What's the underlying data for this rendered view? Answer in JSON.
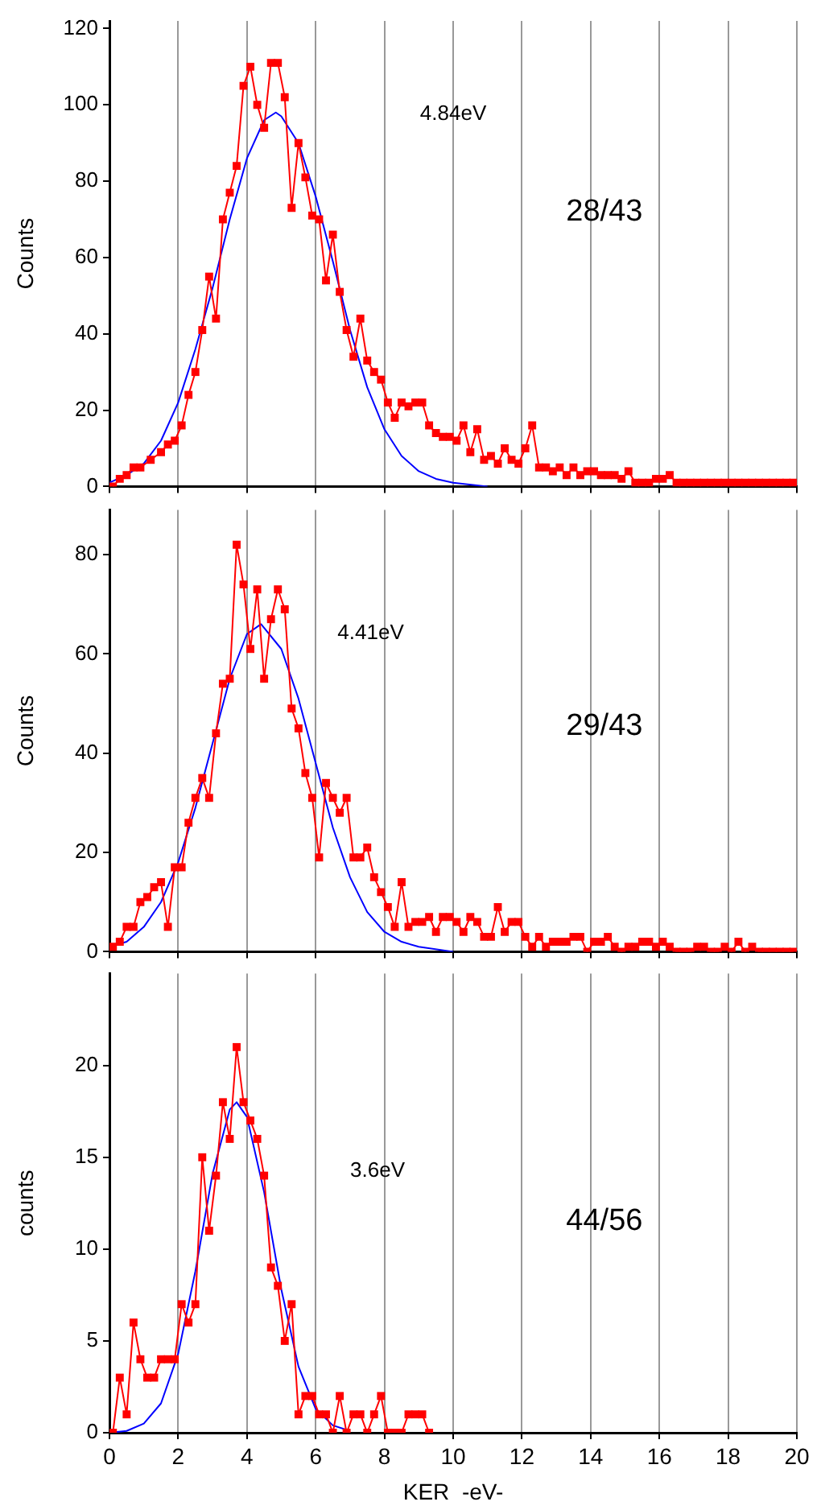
{
  "chart_data": [
    {
      "type": "line",
      "ylabel": "Counts",
      "xlim": [
        0,
        20
      ],
      "ylim": [
        0,
        122
      ],
      "xticks": [
        0,
        2,
        4,
        6,
        8,
        10,
        12,
        14,
        16,
        18,
        20
      ],
      "yticks": [
        0,
        20,
        40,
        60,
        80,
        100,
        120
      ],
      "grid": "x",
      "legend": false,
      "tick_labels": "y",
      "annotations": [
        "4.84eV",
        "28/43"
      ],
      "series": [
        {
          "color": "#ff0000",
          "marker": "square",
          "x": [
            0.1,
            0.3,
            0.5,
            0.7,
            0.9,
            1.2,
            1.5,
            1.7,
            1.9,
            2.1,
            2.3,
            2.5,
            2.7,
            2.9,
            3.1,
            3.3,
            3.5,
            3.7,
            3.9,
            4.1,
            4.3,
            4.5,
            4.7,
            4.9,
            5.1,
            5.3,
            5.5,
            5.7,
            5.9,
            6.1,
            6.3,
            6.5,
            6.7,
            6.9,
            7.1,
            7.3,
            7.5,
            7.7,
            7.9,
            8.1,
            8.3,
            8.5,
            8.7,
            8.9,
            9.1,
            9.3,
            9.5,
            9.7,
            9.9,
            10.1,
            10.3,
            10.5,
            10.7,
            10.9,
            11.1,
            11.3,
            11.5,
            11.7,
            11.9,
            12.1,
            12.3,
            12.5,
            12.7,
            12.9,
            13.1,
            13.3,
            13.5,
            13.7,
            13.9,
            14.1,
            14.3,
            14.5,
            14.7,
            14.9,
            15.1,
            15.3,
            15.5,
            15.7,
            15.9,
            16.1,
            16.3,
            16.5,
            16.7,
            16.9,
            17.1,
            17.3,
            17.5,
            17.7,
            17.9,
            18.1,
            18.3,
            18.5,
            18.7,
            18.9,
            19.1,
            19.3,
            19.5,
            19.7,
            19.9
          ],
          "values": [
            0,
            2,
            3,
            5,
            5,
            7,
            9,
            11,
            12,
            16,
            24,
            30,
            41,
            55,
            44,
            70,
            77,
            84,
            105,
            110,
            100,
            94,
            111,
            111,
            102,
            73,
            90,
            81,
            71,
            70,
            54,
            66,
            51,
            41,
            34,
            44,
            33,
            30,
            28,
            22,
            18,
            22,
            21,
            22,
            22,
            16,
            14,
            13,
            13,
            12,
            16,
            9,
            15,
            7,
            8,
            6,
            10,
            7,
            6,
            10,
            16,
            5,
            5,
            4,
            5,
            3,
            5,
            3,
            4,
            4,
            3,
            3,
            3,
            2,
            4,
            1,
            1,
            1,
            2,
            2,
            3,
            1,
            1,
            1,
            1,
            1,
            1,
            1,
            1,
            1,
            1,
            1,
            1,
            1,
            1,
            1,
            1,
            1,
            1
          ]
        },
        {
          "color": "#0000ff",
          "marker": "none",
          "x": [
            0,
            0.5,
            1,
            1.5,
            2,
            2.5,
            3,
            3.5,
            4,
            4.5,
            4.84,
            5,
            5.5,
            6,
            6.5,
            7,
            7.5,
            8,
            8.5,
            9,
            9.5,
            10,
            11
          ],
          "values": [
            1,
            3,
            6,
            12,
            22,
            36,
            52,
            70,
            86,
            96,
            98,
            97,
            90,
            76,
            59,
            41,
            26,
            15,
            8,
            4,
            2,
            1,
            0
          ]
        }
      ]
    },
    {
      "type": "line",
      "ylabel": "Counts",
      "xlim": [
        0,
        20
      ],
      "ylim": [
        0,
        89
      ],
      "xticks": [
        0,
        2,
        4,
        6,
        8,
        10,
        12,
        14,
        16,
        18,
        20
      ],
      "yticks": [
        0,
        20,
        40,
        60,
        80
      ],
      "grid": "x",
      "legend": false,
      "tick_labels": "y",
      "annotations": [
        "4.41eV",
        "29/43"
      ],
      "series": [
        {
          "color": "#ff0000",
          "marker": "square",
          "x": [
            0.1,
            0.3,
            0.5,
            0.7,
            0.9,
            1.1,
            1.3,
            1.5,
            1.7,
            1.9,
            2.1,
            2.3,
            2.5,
            2.7,
            2.9,
            3.1,
            3.3,
            3.5,
            3.7,
            3.9,
            4.1,
            4.3,
            4.5,
            4.7,
            4.9,
            5.1,
            5.3,
            5.5,
            5.7,
            5.9,
            6.1,
            6.3,
            6.5,
            6.7,
            6.9,
            7.1,
            7.3,
            7.5,
            7.7,
            7.9,
            8.1,
            8.3,
            8.5,
            8.7,
            8.9,
            9.1,
            9.3,
            9.5,
            9.7,
            9.9,
            10.1,
            10.3,
            10.5,
            10.7,
            10.9,
            11.1,
            11.3,
            11.5,
            11.7,
            11.9,
            12.1,
            12.3,
            12.5,
            12.7,
            12.9,
            13.1,
            13.3,
            13.5,
            13.7,
            13.9,
            14.1,
            14.3,
            14.5,
            14.7,
            14.9,
            15.1,
            15.3,
            15.5,
            15.7,
            15.9,
            16.1,
            16.3,
            16.5,
            16.7,
            16.9,
            17.1,
            17.3,
            17.5,
            17.7,
            17.9,
            18.1,
            18.3,
            18.5,
            18.7,
            18.9,
            19.1,
            19.3,
            19.5,
            19.7,
            19.9
          ],
          "values": [
            1,
            2,
            5,
            5,
            10,
            11,
            13,
            14,
            5,
            17,
            17,
            26,
            31,
            35,
            31,
            44,
            54,
            55,
            82,
            74,
            61,
            73,
            55,
            67,
            73,
            69,
            49,
            45,
            36,
            31,
            19,
            34,
            31,
            28,
            31,
            19,
            19,
            21,
            15,
            12,
            9,
            5,
            14,
            5,
            6,
            6,
            7,
            4,
            7,
            7,
            6,
            4,
            7,
            6,
            3,
            3,
            9,
            4,
            6,
            6,
            3,
            1,
            3,
            1,
            2,
            2,
            2,
            3,
            3,
            0,
            2,
            2,
            3,
            1,
            0,
            1,
            1,
            2,
            2,
            1,
            2,
            1,
            0,
            0,
            0,
            1,
            1,
            0,
            0,
            1,
            0,
            2,
            0,
            1,
            0,
            0,
            0,
            0,
            0,
            0
          ]
        },
        {
          "color": "#0000ff",
          "marker": "none",
          "x": [
            0,
            0.5,
            1,
            1.5,
            2,
            2.5,
            3,
            3.5,
            4,
            4.41,
            5,
            5.5,
            6,
            6.5,
            7,
            7.5,
            8,
            8.5,
            9,
            10
          ],
          "values": [
            1,
            2,
            5,
            10,
            18,
            29,
            42,
            55,
            64,
            66,
            61,
            51,
            38,
            25,
            15,
            8,
            4,
            2,
            1,
            0
          ]
        }
      ]
    },
    {
      "type": "line",
      "ylabel": "counts",
      "xlabel": "KER  -eV-",
      "xlim": [
        0,
        20
      ],
      "ylim": [
        0,
        25
      ],
      "xticks": [
        0,
        2,
        4,
        6,
        8,
        10,
        12,
        14,
        16,
        18,
        20
      ],
      "yticks": [
        0,
        5,
        10,
        15,
        20
      ],
      "grid": "x",
      "legend": false,
      "annotations": [
        "3.6eV",
        "44/56"
      ],
      "series": [
        {
          "color": "#ff0000",
          "marker": "square",
          "x": [
            0.1,
            0.3,
            0.5,
            0.7,
            0.9,
            1.1,
            1.3,
            1.5,
            1.7,
            1.9,
            2.1,
            2.3,
            2.5,
            2.7,
            2.9,
            3.1,
            3.3,
            3.5,
            3.7,
            3.9,
            4.1,
            4.3,
            4.5,
            4.7,
            4.9,
            5.1,
            5.3,
            5.5,
            5.7,
            5.9,
            6.1,
            6.3,
            6.5,
            6.7,
            6.9,
            7.1,
            7.3,
            7.5,
            7.7,
            7.9,
            8.1,
            8.3,
            8.5,
            8.7,
            8.9,
            9.1,
            9.3
          ],
          "values": [
            0,
            3,
            1,
            6,
            4,
            3,
            3,
            4,
            4,
            4,
            7,
            6,
            7,
            15,
            11,
            14,
            18,
            16,
            21,
            18,
            17,
            16,
            14,
            9,
            8,
            5,
            7,
            1,
            2,
            2,
            1,
            1,
            0,
            2,
            0,
            1,
            1,
            0,
            1,
            2,
            0,
            0,
            0,
            1,
            1,
            1,
            0
          ]
        },
        {
          "color": "#0000ff",
          "marker": "none",
          "x": [
            0,
            0.5,
            1,
            1.5,
            2,
            2.5,
            3,
            3.5,
            3.7,
            4,
            4.5,
            5,
            5.5,
            6,
            6.5,
            7
          ],
          "values": [
            0,
            0.1,
            0.5,
            1.6,
            4.3,
            8.8,
            14.1,
            17.6,
            18,
            17.2,
            13.1,
            7.8,
            3.6,
            1.3,
            0.4,
            0.1
          ]
        }
      ]
    }
  ]
}
